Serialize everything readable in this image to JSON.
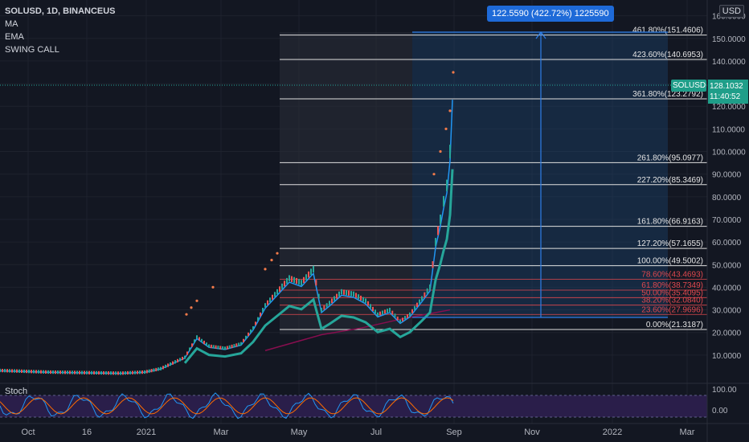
{
  "legend": {
    "title": "SOLUSD, 1D, BINANCEUS",
    "indicators": [
      "MA",
      "EMA",
      "SWING CALL"
    ]
  },
  "currency": "USD",
  "stoch_label": "Stoch",
  "price_tag": {
    "symbol": "SOLUSD",
    "price": "128.1032",
    "countdown": "11:40:52"
  },
  "measure_tooltip": "122.5590 (422.72%) 1225590",
  "colors": {
    "background": "#131722",
    "ma": "#f23645",
    "ema": "#2196f3",
    "ema_slow": "#26a69a",
    "ma_long": "#880e4f",
    "stoch_bg": "#2a1e4a",
    "accent": "#1e6ad8",
    "price_tag": "#1f9e89"
  },
  "chart_data": {
    "type": "line",
    "y_axis_ticks": [
      "160.0000",
      "150.0000",
      "140.0000",
      "130.0000",
      "120.0000",
      "110.0000",
      "100.0000",
      "90.0000",
      "80.0000",
      "70.0000",
      "60.0000",
      "50.0000",
      "40.0000",
      "30.0000",
      "20.0000",
      "10.0000"
    ],
    "ylim": [
      0,
      162
    ],
    "x_axis_ticks": [
      "Oct",
      "16",
      "2021",
      "Mar",
      "May",
      "Jul",
      "Sep",
      "Nov",
      "2022",
      "Mar"
    ],
    "stoch_ticks": [
      "100.00",
      "0.00"
    ],
    "fib_levels": [
      {
        "label": "461.80%(151.4606)",
        "value": 151.4606
      },
      {
        "label": "423.60%(140.6953)",
        "value": 140.6953
      },
      {
        "label": "361.80%(123.2792)",
        "value": 123.2792
      },
      {
        "label": "261.80%(95.0977)",
        "value": 95.0977
      },
      {
        "label": "227.20%(85.3469)",
        "value": 85.3469
      },
      {
        "label": "161.80%(66.9163)",
        "value": 66.9163
      },
      {
        "label": "127.20%(57.1655)",
        "value": 57.1655
      },
      {
        "label": "100.00%(49.5002)",
        "value": 49.5002
      },
      {
        "label": "78.60%(43.4693)",
        "value": 43.4693
      },
      {
        "label": "61.80%(38.7349)",
        "value": 38.7349
      },
      {
        "label": "50.00%(35.4095)",
        "value": 35.4095
      },
      {
        "label": "38.20%(32.0840)",
        "value": 32.084
      },
      {
        "label": "23.60%(27.9696)",
        "value": 27.9696
      },
      {
        "label": "0.00%(21.3187)",
        "value": 21.3187
      }
    ],
    "price_series": [
      {
        "x": 0,
        "y": 3.2
      },
      {
        "x": 60,
        "y": 2.5
      },
      {
        "x": 150,
        "y": 2.0
      },
      {
        "x": 180,
        "y": 2.5
      },
      {
        "x": 200,
        "y": 4
      },
      {
        "x": 230,
        "y": 9
      },
      {
        "x": 245,
        "y": 18
      },
      {
        "x": 260,
        "y": 14
      },
      {
        "x": 280,
        "y": 13
      },
      {
        "x": 300,
        "y": 15
      },
      {
        "x": 315,
        "y": 22
      },
      {
        "x": 330,
        "y": 32
      },
      {
        "x": 345,
        "y": 38
      },
      {
        "x": 360,
        "y": 44
      },
      {
        "x": 375,
        "y": 42
      },
      {
        "x": 390,
        "y": 48
      },
      {
        "x": 400,
        "y": 30
      },
      {
        "x": 410,
        "y": 33
      },
      {
        "x": 425,
        "y": 38
      },
      {
        "x": 440,
        "y": 37
      },
      {
        "x": 455,
        "y": 34
      },
      {
        "x": 470,
        "y": 28
      },
      {
        "x": 485,
        "y": 30
      },
      {
        "x": 498,
        "y": 25
      },
      {
        "x": 510,
        "y": 28
      },
      {
        "x": 525,
        "y": 35
      },
      {
        "x": 535,
        "y": 40
      },
      {
        "x": 542,
        "y": 60
      },
      {
        "x": 548,
        "y": 70
      },
      {
        "x": 552,
        "y": 78
      },
      {
        "x": 556,
        "y": 85
      },
      {
        "x": 560,
        "y": 100
      },
      {
        "x": 563,
        "y": 128
      }
    ]
  }
}
